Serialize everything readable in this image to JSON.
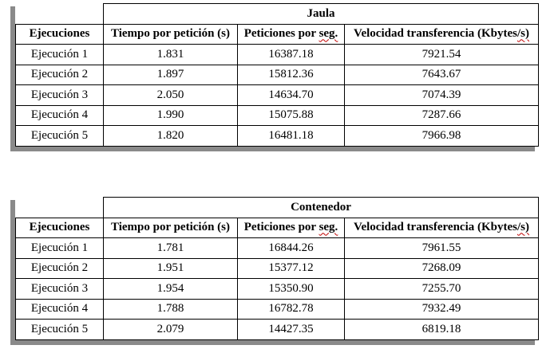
{
  "tables": [
    {
      "title": "Jaula",
      "headers": {
        "ejecuciones": "Ejecuciones",
        "tiempo": "Tiempo por petición (s)",
        "peticiones_prefix": "Peticiones por ",
        "peticiones_suffix": "seg.",
        "velocidad_prefix": "Velocidad transferencia (Kbytes",
        "velocidad_suffix": "/s)"
      },
      "rows": [
        {
          "name": "Ejecución 1",
          "tiempo": "1.831",
          "peticiones": "16387.18",
          "velocidad": "7921.54"
        },
        {
          "name": "Ejecución 2",
          "tiempo": "1.897",
          "peticiones": "15812.36",
          "velocidad": "7643.67"
        },
        {
          "name": "Ejecución 3",
          "tiempo": "2.050",
          "peticiones": "14634.70",
          "velocidad": "7074.39"
        },
        {
          "name": "Ejecución 4",
          "tiempo": "1.990",
          "peticiones": "15075.88",
          "velocidad": "7287.66"
        },
        {
          "name": "Ejecución 5",
          "tiempo": "1.820",
          "peticiones": "16481.18",
          "velocidad": "7966.98"
        }
      ]
    },
    {
      "title": "Contenedor",
      "headers": {
        "ejecuciones": "Ejecuciones",
        "tiempo": "Tiempo por petición (s)",
        "peticiones_prefix": "Peticiones por ",
        "peticiones_suffix": "seg.",
        "velocidad_prefix": "Velocidad transferencia (Kbytes",
        "velocidad_suffix": "/s)"
      },
      "rows": [
        {
          "name": "Ejecución 1",
          "tiempo": "1.781",
          "peticiones": "16844.26",
          "velocidad": "7961.55"
        },
        {
          "name": "Ejecución 2",
          "tiempo": "1.951",
          "peticiones": "15377.12",
          "velocidad": "7268.09"
        },
        {
          "name": "Ejecución 3",
          "tiempo": "1.954",
          "peticiones": "15350.90",
          "velocidad": "7255.70"
        },
        {
          "name": "Ejecución 4",
          "tiempo": "1.788",
          "peticiones": "16782.78",
          "velocidad": "7932.49"
        },
        {
          "name": "Ejecución 5",
          "tiempo": "2.079",
          "peticiones": "14427.35",
          "velocidad": "6819.18"
        }
      ]
    }
  ]
}
